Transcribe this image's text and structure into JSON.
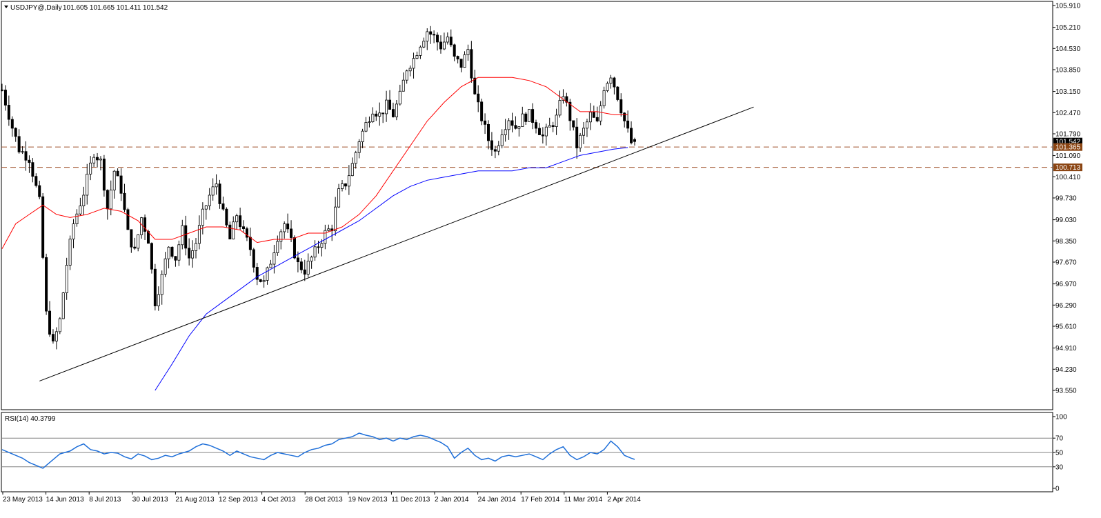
{
  "header": {
    "symbol_label": "USDJPY@,Daily",
    "ohlc_label": "101.605 101.665 101.411 101.542"
  },
  "rsi_header": "RSI(14) 40.3799",
  "colors": {
    "candle": "#000000",
    "ma_fast": "#ff0000",
    "ma_slow": "#0000ff",
    "rsi_line": "#1e6fd9",
    "support_dashed": "#a0522d",
    "price_tag_dark": "#000000",
    "price_tag_brown": "#8b4513",
    "trendline": "#000000",
    "level_line": "#808080"
  },
  "chart_data": [
    {
      "type": "candlestick",
      "symbol": "USDJPY@",
      "timeframe": "Daily",
      "ohlc_current": {
        "open": 101.605,
        "high": 101.665,
        "low": 101.411,
        "close": 101.542
      },
      "ylim": [
        93.55,
        105.91
      ],
      "y_ticks": [
        "105.910",
        "105.210",
        "104.530",
        "103.850",
        "103.150",
        "102.470",
        "101.790",
        "101.090",
        "100.410",
        "99.730",
        "99.030",
        "98.350",
        "97.670",
        "96.970",
        "96.290",
        "95.610",
        "94.910",
        "94.230",
        "93.550"
      ],
      "x_ticks": [
        "23 May 2013",
        "14 Jun 2013",
        "8 Jul 2013",
        "30 Jul 2013",
        "21 Aug 2013",
        "12 Sep 2013",
        "4 Oct 2013",
        "28 Oct 2013",
        "19 Nov 2013",
        "11 Dec 2013",
        "2 Jan 2014",
        "24 Jan 2014",
        "17 Feb 2014",
        "11 Mar 2014",
        "2 Apr 2014"
      ],
      "price_tags": [
        {
          "value": "101.542",
          "style": "dark"
        },
        {
          "value": "101.365",
          "style": "brown"
        },
        {
          "value": "100.713",
          "style": "brown"
        }
      ],
      "horizontal_levels": [
        101.365,
        100.713
      ],
      "trendline": {
        "from": {
          "bar": 11,
          "price": 93.85
        },
        "to": {
          "bar": 221,
          "price": 102.65
        }
      },
      "close_path": [
        [
          0,
          103.2
        ],
        [
          3,
          102.0
        ],
        [
          5,
          101.3
        ],
        [
          8,
          101.0
        ],
        [
          11,
          99.6
        ],
        [
          13,
          96.0
        ],
        [
          15,
          95.0
        ],
        [
          17,
          95.8
        ],
        [
          19,
          97.6
        ],
        [
          21,
          98.9
        ],
        [
          24,
          99.9
        ],
        [
          27,
          101.2
        ],
        [
          29,
          100.9
        ],
        [
          31,
          99.4
        ],
        [
          33,
          100.6
        ],
        [
          35,
          100.0
        ],
        [
          37,
          98.6
        ],
        [
          39,
          98.0
        ],
        [
          41,
          99.1
        ],
        [
          43,
          98.4
        ],
        [
          45,
          96.4
        ],
        [
          47,
          97.2
        ],
        [
          49,
          98.2
        ],
        [
          51,
          97.8
        ],
        [
          53,
          98.7
        ],
        [
          55,
          97.8
        ],
        [
          57,
          98.3
        ],
        [
          59,
          99.2
        ],
        [
          61,
          99.8
        ],
        [
          63,
          100.2
        ],
        [
          65,
          99.2
        ],
        [
          67,
          98.4
        ],
        [
          69,
          99.2
        ],
        [
          71,
          98.6
        ],
        [
          73,
          98.1
        ],
        [
          75,
          97.2
        ],
        [
          77,
          97.0
        ],
        [
          79,
          97.7
        ],
        [
          81,
          98.5
        ],
        [
          83,
          98.9
        ],
        [
          85,
          98.3
        ],
        [
          87,
          97.6
        ],
        [
          89,
          97.4
        ],
        [
          91,
          97.8
        ],
        [
          93,
          98.2
        ],
        [
          95,
          98.6
        ],
        [
          97,
          98.8
        ],
        [
          99,
          99.9
        ],
        [
          101,
          100.2
        ],
        [
          103,
          100.8
        ],
        [
          105,
          101.6
        ],
        [
          107,
          102.1
        ],
        [
          109,
          102.6
        ],
        [
          111,
          102.4
        ],
        [
          113,
          102.7
        ],
        [
          115,
          102.4
        ],
        [
          117,
          103.0
        ],
        [
          119,
          103.9
        ],
        [
          121,
          104.2
        ],
        [
          123,
          104.7
        ],
        [
          125,
          105.1
        ],
        [
          127,
          104.9
        ],
        [
          129,
          104.6
        ],
        [
          131,
          104.9
        ],
        [
          133,
          104.2
        ],
        [
          135,
          104.0
        ],
        [
          137,
          104.5
        ],
        [
          139,
          103.0
        ],
        [
          141,
          102.3
        ],
        [
          143,
          101.6
        ],
        [
          145,
          101.2
        ],
        [
          147,
          101.9
        ],
        [
          149,
          102.3
        ],
        [
          151,
          102.0
        ],
        [
          153,
          102.3
        ],
        [
          155,
          102.4
        ],
        [
          157,
          102.1
        ],
        [
          159,
          101.7
        ],
        [
          161,
          102.0
        ],
        [
          163,
          102.3
        ],
        [
          165,
          103.1
        ],
        [
          167,
          102.3
        ],
        [
          169,
          101.4
        ],
        [
          171,
          101.9
        ],
        [
          173,
          102.4
        ],
        [
          175,
          102.1
        ],
        [
          177,
          103.3
        ],
        [
          179,
          103.7
        ],
        [
          181,
          103.0
        ],
        [
          183,
          102.2
        ],
        [
          185,
          101.5
        ],
        [
          186,
          101.542
        ]
      ],
      "ma_red_path": [
        [
          0,
          98.1
        ],
        [
          4,
          98.9
        ],
        [
          8,
          99.2
        ],
        [
          12,
          99.5
        ],
        [
          16,
          99.2
        ],
        [
          20,
          99.1
        ],
        [
          25,
          99.2
        ],
        [
          30,
          99.4
        ],
        [
          35,
          99.3
        ],
        [
          40,
          99.0
        ],
        [
          45,
          98.4
        ],
        [
          50,
          98.4
        ],
        [
          55,
          98.6
        ],
        [
          60,
          98.8
        ],
        [
          65,
          98.8
        ],
        [
          70,
          98.7
        ],
        [
          75,
          98.3
        ],
        [
          80,
          98.4
        ],
        [
          85,
          98.4
        ],
        [
          90,
          98.6
        ],
        [
          95,
          98.6
        ],
        [
          100,
          98.8
        ],
        [
          105,
          99.2
        ],
        [
          110,
          99.8
        ],
        [
          115,
          100.6
        ],
        [
          120,
          101.4
        ],
        [
          125,
          102.2
        ],
        [
          130,
          102.8
        ],
        [
          135,
          103.3
        ],
        [
          140,
          103.6
        ],
        [
          145,
          103.6
        ],
        [
          150,
          103.6
        ],
        [
          155,
          103.5
        ],
        [
          160,
          103.3
        ],
        [
          165,
          102.9
        ],
        [
          170,
          102.5
        ],
        [
          175,
          102.5
        ],
        [
          180,
          102.4
        ],
        [
          184,
          102.4
        ]
      ],
      "ma_blue_path": [
        [
          45,
          93.55
        ],
        [
          50,
          94.4
        ],
        [
          55,
          95.3
        ],
        [
          60,
          96.0
        ],
        [
          65,
          96.4
        ],
        [
          70,
          96.8
        ],
        [
          75,
          97.2
        ],
        [
          80,
          97.5
        ],
        [
          85,
          97.8
        ],
        [
          90,
          98.1
        ],
        [
          95,
          98.4
        ],
        [
          100,
          98.7
        ],
        [
          105,
          99.0
        ],
        [
          110,
          99.4
        ],
        [
          115,
          99.8
        ],
        [
          120,
          100.1
        ],
        [
          125,
          100.3
        ],
        [
          130,
          100.4
        ],
        [
          135,
          100.5
        ],
        [
          140,
          100.6
        ],
        [
          145,
          100.6
        ],
        [
          150,
          100.6
        ],
        [
          155,
          100.7
        ],
        [
          160,
          100.7
        ],
        [
          165,
          100.9
        ],
        [
          170,
          101.1
        ],
        [
          175,
          101.2
        ],
        [
          180,
          101.3
        ],
        [
          184,
          101.35
        ]
      ]
    },
    {
      "type": "line",
      "name": "RSI(14)",
      "last_value": 40.3799,
      "ylim": [
        0,
        100
      ],
      "y_ticks": [
        "100",
        "70",
        "50",
        "30",
        "0"
      ],
      "levels": [
        70,
        50,
        30
      ],
      "rsi_path": [
        [
          0,
          54
        ],
        [
          3,
          48
        ],
        [
          6,
          42
        ],
        [
          8,
          36
        ],
        [
          10,
          32
        ],
        [
          12,
          28
        ],
        [
          14,
          36
        ],
        [
          17,
          48
        ],
        [
          20,
          52
        ],
        [
          22,
          58
        ],
        [
          24,
          62
        ],
        [
          26,
          54
        ],
        [
          28,
          52
        ],
        [
          30,
          48
        ],
        [
          32,
          50
        ],
        [
          34,
          49
        ],
        [
          36,
          44
        ],
        [
          38,
          41
        ],
        [
          40,
          48
        ],
        [
          42,
          45
        ],
        [
          44,
          40
        ],
        [
          46,
          42
        ],
        [
          48,
          46
        ],
        [
          50,
          44
        ],
        [
          52,
          48
        ],
        [
          55,
          52
        ],
        [
          57,
          58
        ],
        [
          59,
          62
        ],
        [
          61,
          60
        ],
        [
          63,
          56
        ],
        [
          65,
          52
        ],
        [
          67,
          46
        ],
        [
          69,
          52
        ],
        [
          71,
          48
        ],
        [
          73,
          44
        ],
        [
          75,
          42
        ],
        [
          77,
          40
        ],
        [
          79,
          46
        ],
        [
          81,
          50
        ],
        [
          83,
          48
        ],
        [
          85,
          46
        ],
        [
          87,
          44
        ],
        [
          89,
          50
        ],
        [
          91,
          54
        ],
        [
          93,
          56
        ],
        [
          95,
          60
        ],
        [
          97,
          62
        ],
        [
          99,
          68
        ],
        [
          101,
          70
        ],
        [
          103,
          72
        ],
        [
          105,
          77
        ],
        [
          107,
          74
        ],
        [
          109,
          72
        ],
        [
          111,
          68
        ],
        [
          113,
          70
        ],
        [
          115,
          66
        ],
        [
          117,
          70
        ],
        [
          119,
          68
        ],
        [
          121,
          72
        ],
        [
          123,
          74
        ],
        [
          125,
          72
        ],
        [
          127,
          68
        ],
        [
          129,
          64
        ],
        [
          131,
          58
        ],
        [
          133,
          42
        ],
        [
          135,
          50
        ],
        [
          137,
          56
        ],
        [
          139,
          46
        ],
        [
          141,
          40
        ],
        [
          143,
          42
        ],
        [
          145,
          38
        ],
        [
          147,
          44
        ],
        [
          149,
          46
        ],
        [
          151,
          44
        ],
        [
          153,
          46
        ],
        [
          155,
          48
        ],
        [
          157,
          44
        ],
        [
          159,
          40
        ],
        [
          161,
          48
        ],
        [
          163,
          54
        ],
        [
          165,
          58
        ],
        [
          167,
          46
        ],
        [
          169,
          40
        ],
        [
          171,
          44
        ],
        [
          173,
          50
        ],
        [
          175,
          48
        ],
        [
          177,
          54
        ],
        [
          179,
          66
        ],
        [
          181,
          58
        ],
        [
          183,
          46
        ],
        [
          185,
          42
        ],
        [
          186,
          40.38
        ]
      ]
    }
  ]
}
